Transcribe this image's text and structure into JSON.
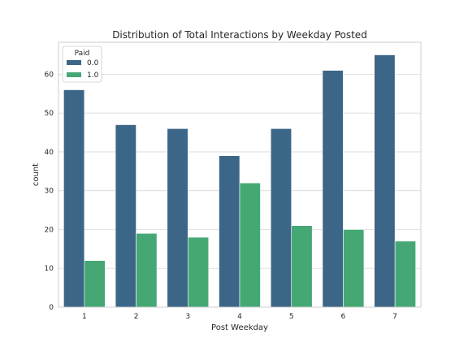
{
  "chart_data": {
    "type": "bar",
    "title": "Distribution of Total Interactions by Weekday Posted",
    "xlabel": "Post Weekday",
    "ylabel": "count",
    "categories": [
      "1",
      "2",
      "3",
      "4",
      "5",
      "6",
      "7"
    ],
    "series": [
      {
        "name": "0.0",
        "color": "#3b6687",
        "values": [
          56,
          47,
          46,
          39,
          46,
          61,
          65
        ]
      },
      {
        "name": "1.0",
        "color": "#45a874",
        "values": [
          12,
          19,
          18,
          32,
          21,
          20,
          17
        ]
      }
    ],
    "ylim": [
      0,
      68.25
    ],
    "yticks": [
      0,
      10,
      20,
      30,
      40,
      50,
      60
    ],
    "grid": true,
    "legend": {
      "title": "Paid",
      "placement": "upper-left"
    },
    "colors": {
      "background": "#ffffff",
      "grid": "#d9d9d9",
      "axes_edge": "#cccccc",
      "text": "#262626"
    }
  }
}
